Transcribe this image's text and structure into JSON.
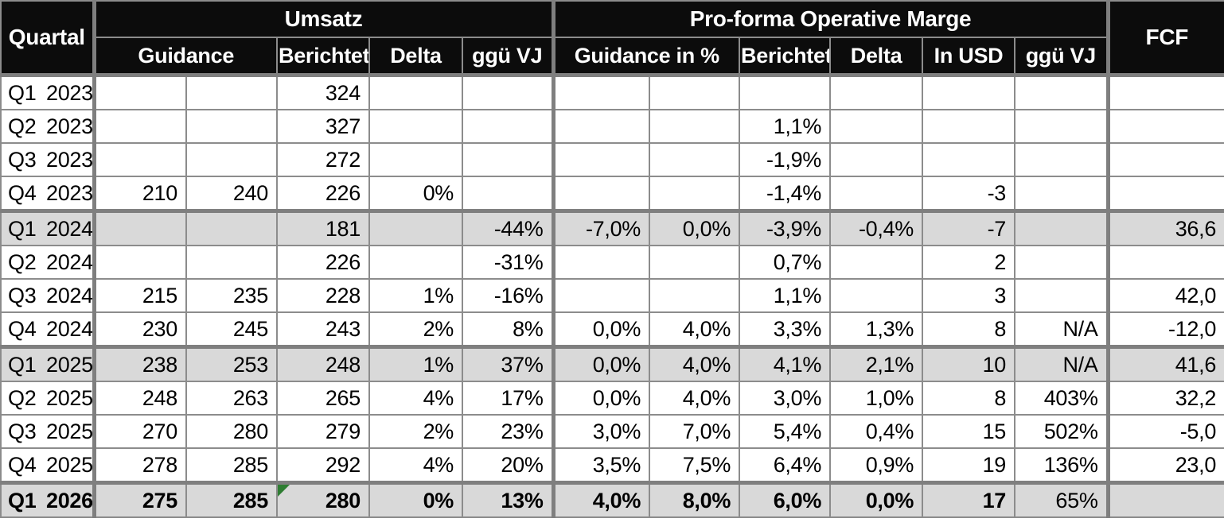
{
  "table": {
    "corner_label": "Quartal",
    "fcf_label": "FCF",
    "umsatz": {
      "label": "Umsatz",
      "sub": [
        "Guidance",
        "Berichtet",
        "Delta",
        "ggü VJ"
      ]
    },
    "marge": {
      "label": "Pro-forma Operative Marge",
      "sub": [
        "Guidance in %",
        "Berichtet",
        "Delta",
        "In USD",
        "ggü VJ"
      ]
    },
    "rows": [
      {
        "label": {
          "quarter": "Q1",
          "year": "2023"
        },
        "shaded": false,
        "thick_top": false,
        "bold": false,
        "cells": [
          "",
          "",
          "324",
          "",
          "",
          "",
          "",
          "",
          "",
          "",
          "",
          ""
        ]
      },
      {
        "label": {
          "quarter": "Q2",
          "year": "2023"
        },
        "shaded": false,
        "thick_top": false,
        "bold": false,
        "cells": [
          "",
          "",
          "327",
          "",
          "",
          "",
          "",
          "1,1%",
          "",
          "",
          "",
          ""
        ]
      },
      {
        "label": {
          "quarter": "Q3",
          "year": "2023"
        },
        "shaded": false,
        "thick_top": false,
        "bold": false,
        "cells": [
          "",
          "",
          "272",
          "",
          "",
          "",
          "",
          "-1,9%",
          "",
          "",
          "",
          ""
        ]
      },
      {
        "label": {
          "quarter": "Q4",
          "year": "2023"
        },
        "shaded": false,
        "thick_top": false,
        "bold": false,
        "cells": [
          "210",
          "240",
          "226",
          "0%",
          "",
          "",
          "",
          "-1,4%",
          "",
          "-3",
          "",
          ""
        ]
      },
      {
        "label": {
          "quarter": "Q1",
          "year": "2024"
        },
        "shaded": true,
        "thick_top": true,
        "bold": false,
        "cells": [
          "",
          "",
          "181",
          "",
          "-44%",
          "-7,0%",
          "0,0%",
          "-3,9%",
          "-0,4%",
          "-7",
          "",
          "36,6"
        ]
      },
      {
        "label": {
          "quarter": "Q2",
          "year": "2024"
        },
        "shaded": false,
        "thick_top": false,
        "bold": false,
        "cells": [
          "",
          "",
          "226",
          "",
          "-31%",
          "",
          "",
          "0,7%",
          "",
          "2",
          "",
          ""
        ]
      },
      {
        "label": {
          "quarter": "Q3",
          "year": "2024"
        },
        "shaded": false,
        "thick_top": false,
        "bold": false,
        "cells": [
          "215",
          "235",
          "228",
          "1%",
          "-16%",
          "",
          "",
          "1,1%",
          "",
          "3",
          "",
          "42,0"
        ]
      },
      {
        "label": {
          "quarter": "Q4",
          "year": "2024"
        },
        "shaded": false,
        "thick_top": false,
        "bold": false,
        "cells": [
          "230",
          "245",
          "243",
          "2%",
          "8%",
          "0,0%",
          "4,0%",
          "3,3%",
          "1,3%",
          "8",
          "N/A",
          "-12,0"
        ]
      },
      {
        "label": {
          "quarter": "Q1",
          "year": "2025"
        },
        "shaded": true,
        "thick_top": true,
        "bold": false,
        "cells": [
          "238",
          "253",
          "248",
          "1%",
          "37%",
          "0,0%",
          "4,0%",
          "4,1%",
          "2,1%",
          "10",
          "N/A",
          "41,6"
        ]
      },
      {
        "label": {
          "quarter": "Q2",
          "year": "2025"
        },
        "shaded": false,
        "thick_top": false,
        "bold": false,
        "cells": [
          "248",
          "263",
          "265",
          "4%",
          "17%",
          "0,0%",
          "4,0%",
          "3,0%",
          "1,0%",
          "8",
          "403%",
          "32,2"
        ]
      },
      {
        "label": {
          "quarter": "Q3",
          "year": "2025"
        },
        "shaded": false,
        "thick_top": false,
        "bold": false,
        "cells": [
          "270",
          "280",
          "279",
          "2%",
          "23%",
          "3,0%",
          "7,0%",
          "5,4%",
          "0,4%",
          "15",
          "502%",
          "-5,0"
        ]
      },
      {
        "label": {
          "quarter": "Q4",
          "year": "2025"
        },
        "shaded": false,
        "thick_top": false,
        "bold": false,
        "cells": [
          "278",
          "285",
          "292",
          "4%",
          "20%",
          "3,5%",
          "7,5%",
          "6,4%",
          "0,9%",
          "19",
          "136%",
          "23,0"
        ]
      },
      {
        "label": {
          "quarter": "Q1",
          "year": "2026"
        },
        "shaded": true,
        "thick_top": true,
        "bold": true,
        "green_corner_cell": 2,
        "regular_cells": [
          10
        ],
        "cells": [
          "275",
          "285",
          "280",
          "0%",
          "13%",
          "4,0%",
          "8,0%",
          "6,0%",
          "0,0%",
          "17",
          "65%",
          ""
        ]
      }
    ]
  },
  "colors": {
    "header_bg": "#0c0c0c",
    "header_text": "#ffffff",
    "grid_line": "#8c8c8c",
    "thick_line": "#7f7f7f",
    "shaded_row": "#d9d9d9",
    "flag_green": "#2e7d32",
    "cell_bg": "#ffffff",
    "text": "#000000"
  }
}
